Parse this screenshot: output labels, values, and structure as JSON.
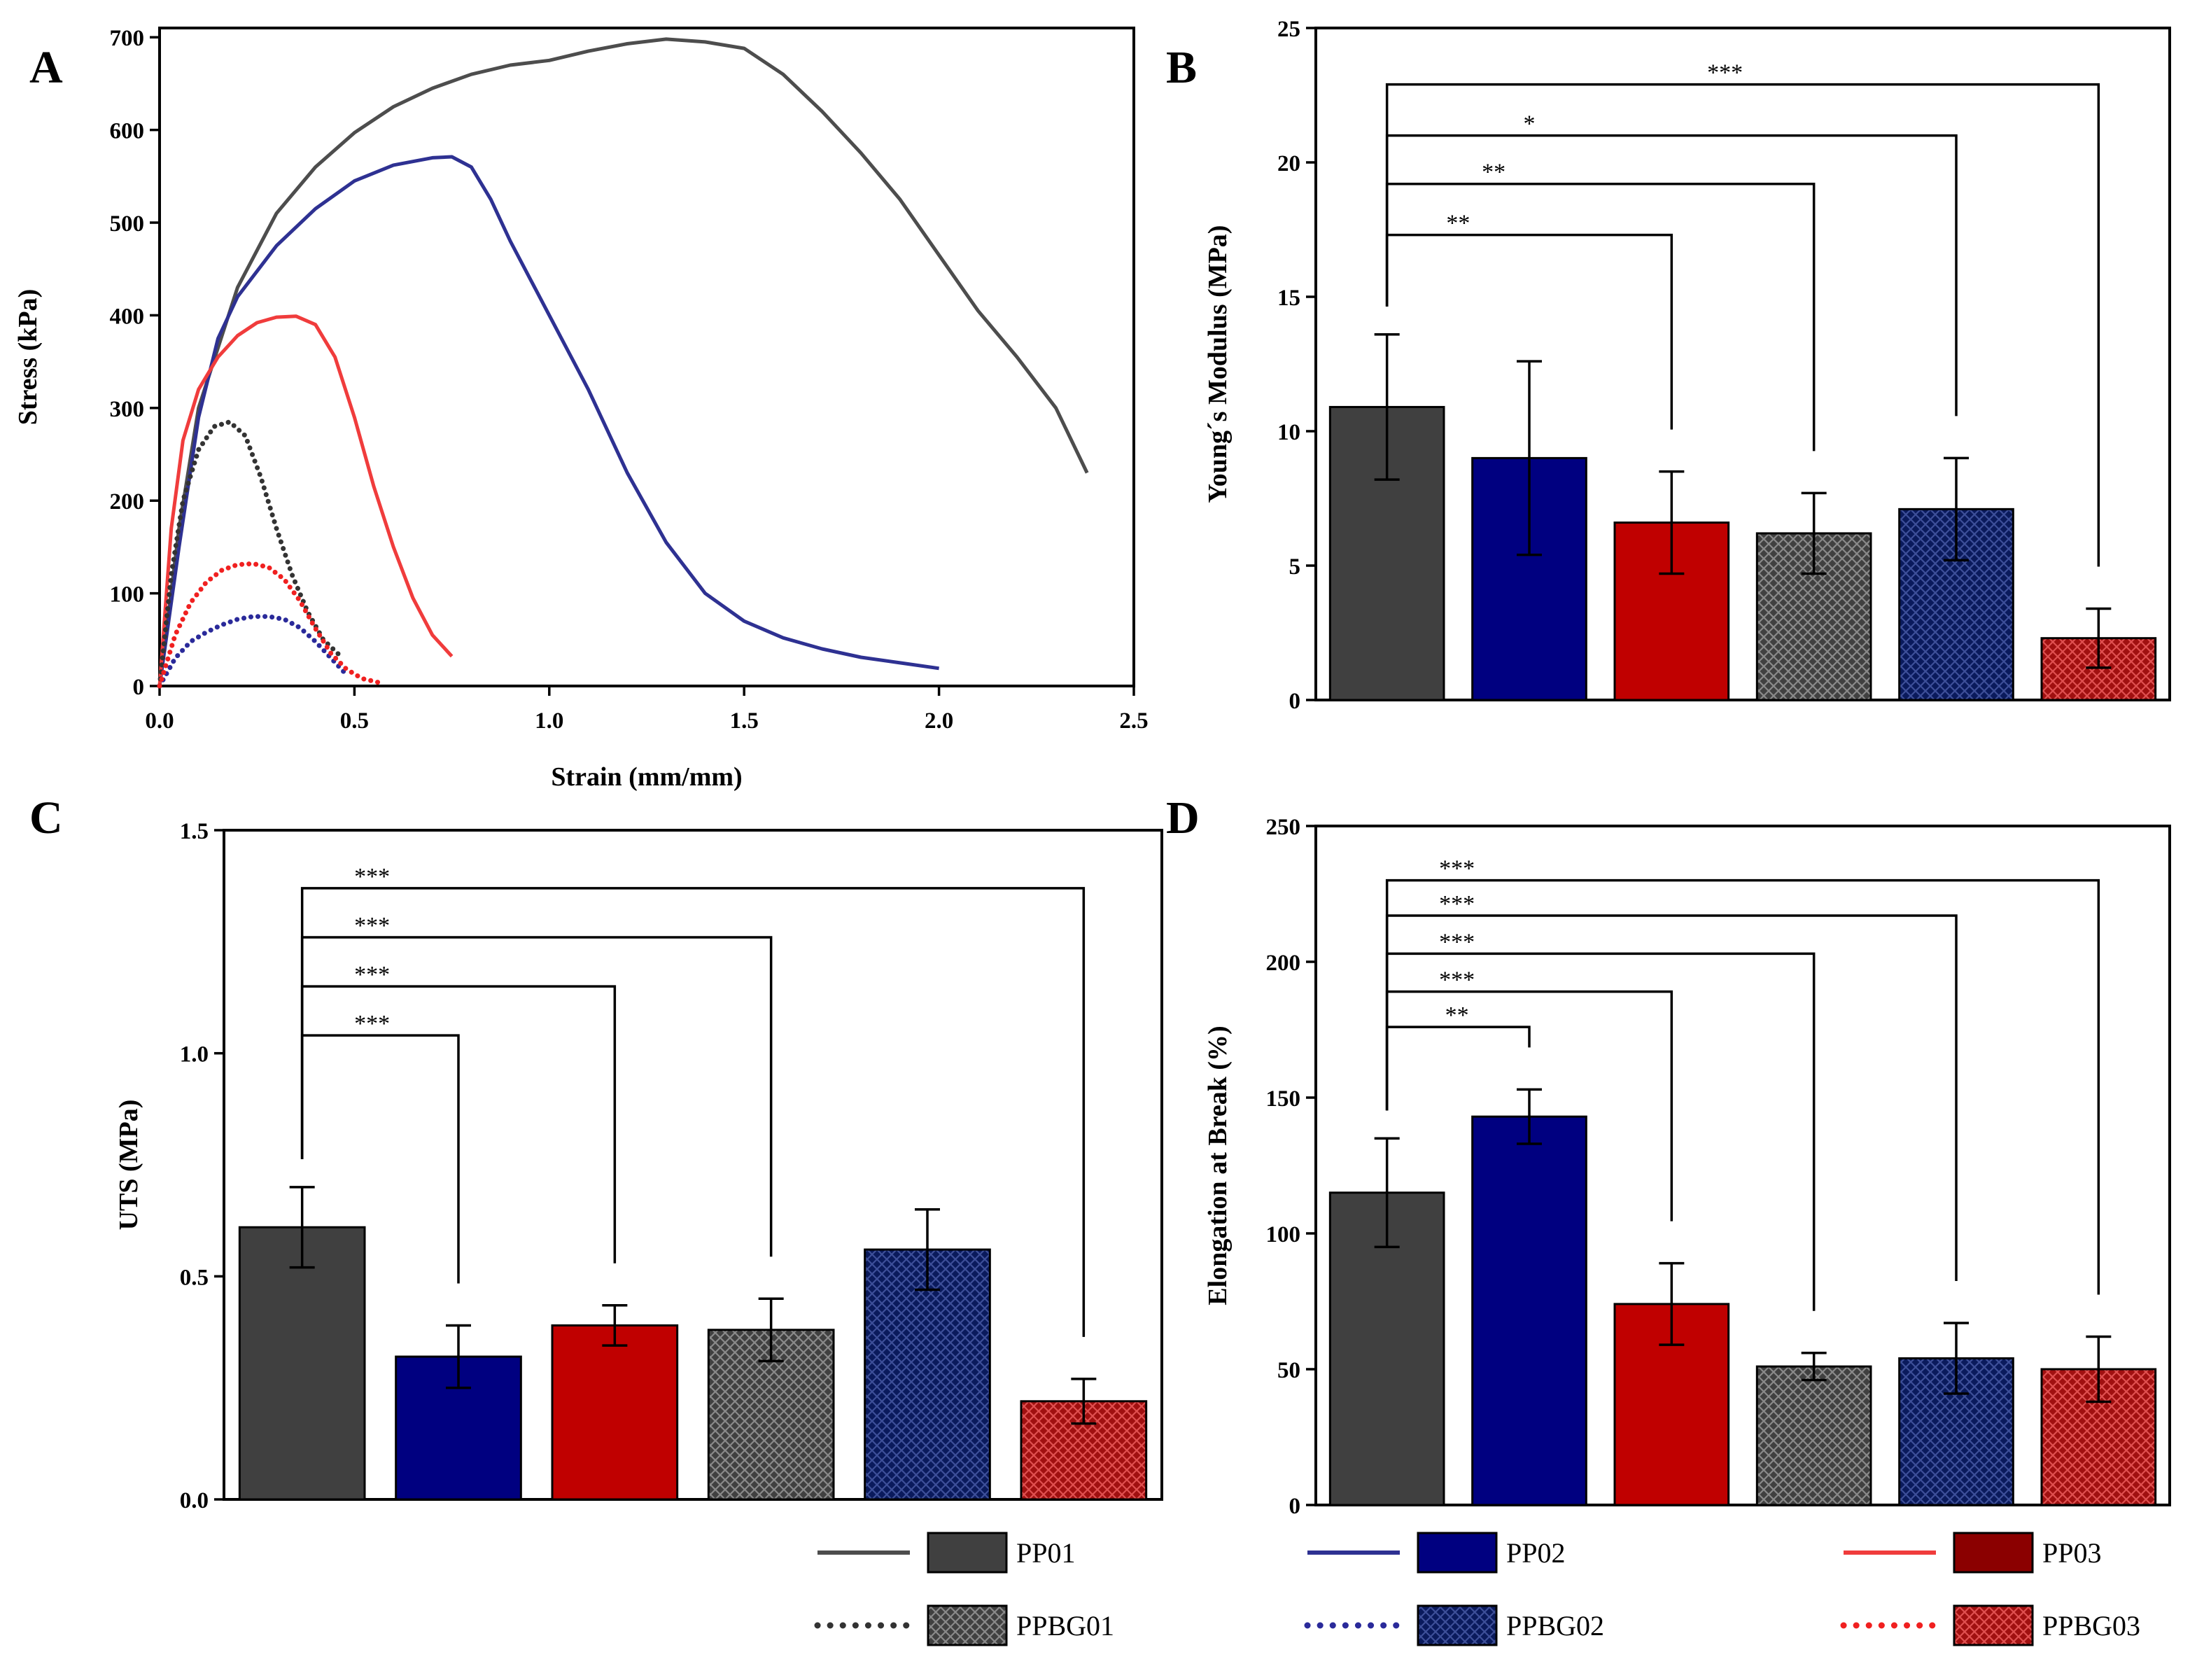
{
  "colors": {
    "PP01": "#404040",
    "PP02": "#000080",
    "PP03": "#c00000",
    "PPBG01": "#404040",
    "PPBG02": "#0a1a5c",
    "PPBG03": "#a01010",
    "line_PP01": "#4d4d4d",
    "line_PP02": "#2e3192",
    "line_PP03": "#f03c3c",
    "line_PPBG01": "#333333",
    "line_PPBG02": "#2a2a9a",
    "line_PPBG03": "#f02020",
    "legend_PP03_fill": "#8b0000"
  },
  "legend": {
    "entries": [
      {
        "key": "PP01",
        "label": "PP01",
        "line": "solid",
        "fill": "solid"
      },
      {
        "key": "PP02",
        "label": "PP02",
        "line": "solid",
        "fill": "solid"
      },
      {
        "key": "PP03",
        "label": "PP03",
        "line": "solid",
        "fill": "solid"
      },
      {
        "key": "PPBG01",
        "label": "PPBG01",
        "line": "dotted",
        "fill": "hatched"
      },
      {
        "key": "PPBG02",
        "label": "PPBG02",
        "line": "dotted",
        "fill": "hatched"
      },
      {
        "key": "PPBG03",
        "label": "PPBG03",
        "line": "dotted",
        "fill": "hatched"
      }
    ]
  },
  "chart_data": [
    {
      "panel": "A",
      "type": "line",
      "xlabel": "Strain (mm/mm)",
      "ylabel": "Stress (kPa)",
      "xlim": [
        0,
        2.5
      ],
      "ylim": [
        0,
        710
      ],
      "xticks": [
        0,
        0.5,
        1.0,
        1.5,
        2.0,
        2.5
      ],
      "xtick_labels": [
        "0.0",
        "0.5",
        "1.0",
        "1.5",
        "2.0",
        "2.5"
      ],
      "yticks": [
        0,
        100,
        200,
        300,
        400,
        500,
        600,
        700
      ],
      "ytick_labels": [
        "0",
        "100",
        "200",
        "300",
        "400",
        "500",
        "600",
        "700"
      ],
      "series": [
        {
          "name": "PP01",
          "style": "solid",
          "x": [
            0,
            0.05,
            0.1,
            0.2,
            0.3,
            0.4,
            0.5,
            0.6,
            0.7,
            0.8,
            0.9,
            1.0,
            1.1,
            1.2,
            1.3,
            1.4,
            1.5,
            1.6,
            1.7,
            1.8,
            1.9,
            2.0,
            2.1,
            2.2,
            2.3,
            2.38
          ],
          "y": [
            0,
            170,
            300,
            430,
            510,
            560,
            597,
            625,
            645,
            660,
            670,
            675,
            685,
            693,
            698,
            695,
            688,
            660,
            620,
            575,
            525,
            465,
            405,
            355,
            300,
            230
          ]
        },
        {
          "name": "PP02",
          "style": "solid",
          "x": [
            0,
            0.05,
            0.1,
            0.15,
            0.2,
            0.3,
            0.4,
            0.5,
            0.6,
            0.7,
            0.75,
            0.8,
            0.85,
            0.9,
            1.0,
            1.1,
            1.2,
            1.3,
            1.4,
            1.5,
            1.6,
            1.7,
            1.8,
            1.9,
            2.0
          ],
          "y": [
            0,
            150,
            290,
            375,
            420,
            475,
            515,
            545,
            562,
            570,
            571,
            560,
            525,
            480,
            400,
            320,
            230,
            155,
            100,
            70,
            52,
            40,
            31,
            25,
            19
          ]
        },
        {
          "name": "PP03",
          "style": "solid",
          "x": [
            0,
            0.03,
            0.06,
            0.1,
            0.15,
            0.2,
            0.25,
            0.3,
            0.35,
            0.4,
            0.45,
            0.5,
            0.55,
            0.6,
            0.65,
            0.7,
            0.75
          ],
          "y": [
            0,
            170,
            265,
            320,
            355,
            378,
            392,
            398,
            399,
            390,
            355,
            290,
            215,
            150,
            95,
            55,
            32
          ]
        },
        {
          "name": "PPBG01",
          "style": "dotted",
          "x": [
            0,
            0.03,
            0.06,
            0.1,
            0.14,
            0.18,
            0.22,
            0.26,
            0.3,
            0.34,
            0.38,
            0.42,
            0.47
          ],
          "y": [
            0,
            120,
            200,
            255,
            280,
            285,
            270,
            225,
            170,
            120,
            80,
            50,
            30
          ]
        },
        {
          "name": "PPBG02",
          "style": "dotted",
          "x": [
            0,
            0.04,
            0.08,
            0.12,
            0.16,
            0.2,
            0.24,
            0.28,
            0.32,
            0.36,
            0.4,
            0.44,
            0.48
          ],
          "y": [
            0,
            30,
            48,
            58,
            66,
            72,
            75,
            75,
            72,
            63,
            48,
            30,
            12
          ]
        },
        {
          "name": "PPBG03",
          "style": "dotted",
          "x": [
            0,
            0.04,
            0.08,
            0.12,
            0.16,
            0.2,
            0.24,
            0.28,
            0.32,
            0.36,
            0.4,
            0.44,
            0.48,
            0.52,
            0.57
          ],
          "y": [
            0,
            55,
            90,
            112,
            125,
            131,
            132,
            128,
            115,
            92,
            62,
            35,
            18,
            8,
            3
          ]
        }
      ]
    },
    {
      "panel": "B",
      "type": "bar",
      "ylabel": "Young´s Modulus (MPa)",
      "ylim": [
        0,
        25
      ],
      "yticks": [
        0,
        5,
        10,
        15,
        20,
        25
      ],
      "ytick_labels": [
        "0",
        "5",
        "10",
        "15",
        "20",
        "25"
      ],
      "categories": [
        "PP01",
        "PP02",
        "PP03",
        "PPBG01",
        "PPBG02",
        "PPBG03"
      ],
      "values": [
        10.9,
        9.0,
        6.6,
        6.2,
        7.1,
        2.3
      ],
      "errors": [
        2.7,
        3.6,
        1.9,
        1.5,
        1.9,
        1.1
      ],
      "significance": [
        {
          "from": 0,
          "to": 2,
          "level": 17.3,
          "label": "**"
        },
        {
          "from": 0,
          "to": 3,
          "level": 19.2,
          "label": "**"
        },
        {
          "from": 0,
          "to": 4,
          "level": 21.0,
          "label": "*"
        },
        {
          "from": 0,
          "to": 5,
          "level": 22.9,
          "label": "***"
        }
      ]
    },
    {
      "panel": "C",
      "type": "bar",
      "ylabel": "UTS (MPa)",
      "ylim": [
        0,
        1.5
      ],
      "yticks": [
        0,
        0.5,
        1.0,
        1.5
      ],
      "ytick_labels": [
        "0.0",
        "0.5",
        "1.0",
        "1.5"
      ],
      "categories": [
        "PP01",
        "PP02",
        "PP03",
        "PPBG01",
        "PPBG02",
        "PPBG03"
      ],
      "values": [
        0.61,
        0.32,
        0.39,
        0.38,
        0.56,
        0.22
      ],
      "errors": [
        0.09,
        0.07,
        0.045,
        0.07,
        0.09,
        0.05
      ],
      "significance": [
        {
          "from": 0,
          "to": 1,
          "level": 1.04,
          "label": "***"
        },
        {
          "from": 0,
          "to": 2,
          "level": 1.15,
          "label": "***"
        },
        {
          "from": 0,
          "to": 3,
          "level": 1.26,
          "label": "***"
        },
        {
          "from": 0,
          "to": 5,
          "level": 1.37,
          "label": "***"
        }
      ]
    },
    {
      "panel": "D",
      "type": "bar",
      "ylabel": "Elongation at Break (%)",
      "ylim": [
        0,
        250
      ],
      "yticks": [
        0,
        50,
        100,
        150,
        200,
        250
      ],
      "ytick_labels": [
        "0",
        "50",
        "100",
        "150",
        "200",
        "250"
      ],
      "categories": [
        "PP01",
        "PP02",
        "PP03",
        "PPBG01",
        "PPBG02",
        "PPBG03"
      ],
      "values": [
        115,
        143,
        74,
        51,
        54,
        50
      ],
      "errors": [
        20,
        10,
        15,
        5,
        13,
        12
      ],
      "significance": [
        {
          "from": 0,
          "to": 1,
          "level": 176,
          "label": "**"
        },
        {
          "from": 0,
          "to": 2,
          "level": 189,
          "label": "***"
        },
        {
          "from": 0,
          "to": 3,
          "level": 203,
          "label": "***"
        },
        {
          "from": 0,
          "to": 4,
          "level": 217,
          "label": "***"
        },
        {
          "from": 0,
          "to": 5,
          "level": 230,
          "label": "***"
        }
      ]
    }
  ]
}
